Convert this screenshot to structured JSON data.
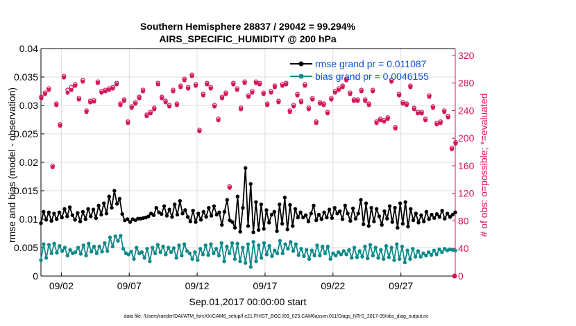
{
  "chart_data": {
    "type": "line",
    "title": "Southern Hemisphere 28837 / 29042 = 99.294%",
    "subtitle": "AIRS_SPECIFIC_HUMIDITY @ 200 hPa",
    "xlabel": "Sep.01,2017 00:00:00 start",
    "ylabel_left": "rmse and bias (model - observation)",
    "ylabel_right": "# of obs: o=possible; *=evaluated",
    "footnote": "data file: /Users/raeder/DAI/ATM_forcXX/CAM6_setup/f.e21.FHIST_BGC.f09_025.CAM6assim.011/Diags_NTrS_2017-09/obs_diag_output.nc",
    "x_range_days": [
      0.5,
      31
    ],
    "x_ticks": [
      "09/02",
      "09/07",
      "09/12",
      "09/17",
      "09/22",
      "09/27"
    ],
    "x_tick_days": [
      2,
      7,
      12,
      17,
      22,
      27
    ],
    "ylim_left": [
      0,
      0.04
    ],
    "y_ticks_left": [
      "0",
      "0.005",
      "0.01",
      "0.015",
      "0.02",
      "0.025",
      "0.03",
      "0.035",
      "0.04"
    ],
    "ylim_right": [
      0,
      330
    ],
    "y_ticks_right": [
      "0",
      "40",
      "80",
      "120",
      "160",
      "200",
      "240",
      "280",
      "320"
    ],
    "grid": true,
    "legend_position": "top-right",
    "legend": [
      "rmse grand pr = 0.011087",
      "bias grand pr = 0.0046155"
    ],
    "colors": {
      "rmse": "#000000",
      "bias": "#0f8a8a",
      "obs": "#d4145a",
      "legend_text": "#0a4fd6",
      "grid": "#dcdcdc"
    },
    "series": [
      {
        "name": "rmse",
        "axis": "left",
        "values": [
          0.0093,
          0.0113,
          0.0099,
          0.0112,
          0.0097,
          0.011,
          0.01,
          0.0112,
          0.0103,
          0.0118,
          0.0105,
          0.0121,
          0.0107,
          0.0099,
          0.0111,
          0.0096,
          0.0113,
          0.01,
          0.0118,
          0.0105,
          0.0117,
          0.0102,
          0.0124,
          0.0108,
          0.0128,
          0.011,
          0.014,
          0.012,
          0.015,
          0.0127,
          0.0136,
          0.0109,
          0.0098,
          0.01,
          0.0095,
          0.01,
          0.0098,
          0.0101,
          0.0101,
          0.0102,
          0.0103,
          0.0105,
          0.011,
          0.0107,
          0.012,
          0.0112,
          0.0109,
          0.0123,
          0.0106,
          0.0117,
          0.0104,
          0.0126,
          0.0108,
          0.0132,
          0.011,
          0.0116,
          0.0104,
          0.0096,
          0.0115,
          0.0095,
          0.011,
          0.0099,
          0.0113,
          0.0104,
          0.012,
          0.0106,
          0.0123,
          0.0108,
          0.0112,
          0.009,
          0.0113,
          0.0134,
          0.0098,
          0.0095,
          0.0085,
          0.014,
          0.0078,
          0.012,
          0.019,
          0.0088,
          0.0162,
          0.0077,
          0.013,
          0.0081,
          0.0126,
          0.0083,
          0.0116,
          0.0094,
          0.0108,
          0.0113,
          0.0079,
          0.0126,
          0.0092,
          0.0138,
          0.0082,
          0.0125,
          0.0088,
          0.0118,
          0.0103,
          0.0112,
          0.0103,
          0.0107,
          0.0096,
          0.011,
          0.0124,
          0.0098,
          0.0108,
          0.01,
          0.0112,
          0.0103,
          0.0117,
          0.0102,
          0.012,
          0.011,
          0.0114,
          0.01,
          0.0124,
          0.011,
          0.0097,
          0.0119,
          0.0101,
          0.011,
          0.0134,
          0.0091,
          0.0128,
          0.0088,
          0.012,
          0.0096,
          0.0118,
          0.0105,
          0.009,
          0.0114,
          0.0101,
          0.0123,
          0.0095,
          0.012,
          0.0085,
          0.0128,
          0.0092,
          0.013,
          0.0087,
          0.0118,
          0.0098,
          0.011,
          0.0094,
          0.0107,
          0.0096,
          0.0113,
          0.01,
          0.0108,
          0.0102,
          0.0109,
          0.0104,
          0.0115,
          0.0101,
          0.011,
          0.0104,
          0.0108,
          0.0112
        ]
      },
      {
        "name": "bias",
        "axis": "left",
        "values": [
          0.0028,
          0.0056,
          0.0032,
          0.0055,
          0.004,
          0.0057,
          0.0041,
          0.0053,
          0.0044,
          0.005,
          0.0036,
          0.0046,
          0.004,
          0.0042,
          0.005,
          0.0039,
          0.0054,
          0.0036,
          0.0057,
          0.0043,
          0.0052,
          0.004,
          0.0052,
          0.0043,
          0.0058,
          0.0044,
          0.0068,
          0.0052,
          0.007,
          0.0062,
          0.0071,
          0.0048,
          0.004,
          0.0038,
          0.0043,
          0.003,
          0.005,
          0.004,
          0.0042,
          0.0032,
          0.0048,
          0.0026,
          0.005,
          0.004,
          0.0055,
          0.0042,
          0.0052,
          0.0038,
          0.005,
          0.0042,
          0.0049,
          0.0032,
          0.0054,
          0.0036,
          0.0056,
          0.0044,
          0.004,
          0.003,
          0.0042,
          0.0028,
          0.0048,
          0.0038,
          0.0054,
          0.0037,
          0.0056,
          0.004,
          0.0048,
          0.0036,
          0.0058,
          0.0026,
          0.0052,
          0.004,
          0.0058,
          0.003,
          0.0057,
          0.0026,
          0.005,
          0.0023,
          0.0056,
          0.0016,
          0.006,
          0.0026,
          0.0054,
          0.0032,
          0.0058,
          0.0038,
          0.0053,
          0.0035,
          0.0045,
          0.004,
          0.0062,
          0.004,
          0.0056,
          0.0048,
          0.006,
          0.0044,
          0.0056,
          0.0037,
          0.0048,
          0.0035,
          0.0046,
          0.003,
          0.0045,
          0.0036,
          0.0054,
          0.0036,
          0.0052,
          0.004,
          0.0052,
          0.003,
          0.004,
          0.0036,
          0.0042,
          0.0038,
          0.0044,
          0.0038,
          0.0046,
          0.0032,
          0.005,
          0.0033,
          0.0044,
          0.0034,
          0.0052,
          0.0031,
          0.0055,
          0.0036,
          0.005,
          0.0032,
          0.0046,
          0.003,
          0.0053,
          0.0033,
          0.005,
          0.0028,
          0.0056,
          0.003,
          0.0052,
          0.0024,
          0.0045,
          0.003,
          0.0048,
          0.0034,
          0.0044,
          0.0034,
          0.004,
          0.0036,
          0.0042,
          0.0037,
          0.0045,
          0.0038,
          0.0047,
          0.0042,
          0.0048,
          0.0045,
          0.0047,
          0.0046,
          0.0045
        ]
      },
      {
        "name": "obs_possible",
        "axis": "right",
        "values": [
          260,
          266,
          272,
          160,
          250,
          220,
          290,
          270,
          274,
          278,
          258,
          284,
          240,
          254,
          255,
          282,
          268,
          270,
          272,
          274,
          280,
          250,
          256,
          224,
          246,
          252,
          260,
          270,
          234,
          238,
          244,
          280,
          260,
          254,
          248,
          270,
          250,
          276,
          286,
          274,
          292,
          278,
          212,
          264,
          280,
          274,
          248,
          228,
          260,
          266,
          130,
          280,
          272,
          244,
          282,
          262,
          268,
          282,
          280,
          266,
          250,
          268,
          276,
          254,
          278,
          280,
          240,
          248,
          264,
          254,
          278,
          244,
          258,
          224,
          252,
          250,
          238,
          258,
          268,
          272,
          276,
          286,
          266,
          256,
          256,
          270,
          256,
          250,
          270,
          224,
          228,
          226,
          230,
          284,
          216,
          264,
          252,
          250,
          276,
          244,
          238,
          238,
          228,
          262,
          246,
          222,
          224,
          240,
          232,
          186,
          194
        ]
      },
      {
        "name": "obs_evaluated",
        "axis": "right",
        "values": [
          258,
          264,
          270,
          158,
          248,
          218,
          288,
          266,
          270,
          276,
          256,
          282,
          238,
          252,
          253,
          280,
          266,
          268,
          270,
          272,
          278,
          248,
          254,
          222,
          244,
          250,
          258,
          268,
          232,
          236,
          242,
          278,
          258,
          252,
          246,
          268,
          248,
          274,
          284,
          272,
          290,
          276,
          210,
          262,
          278,
          272,
          246,
          226,
          258,
          264,
          128,
          278,
          270,
          242,
          280,
          260,
          266,
          280,
          278,
          264,
          248,
          266,
          274,
          252,
          276,
          278,
          238,
          246,
          262,
          252,
          276,
          242,
          256,
          222,
          250,
          248,
          236,
          256,
          266,
          270,
          274,
          284,
          264,
          254,
          254,
          268,
          254,
          248,
          268,
          222,
          226,
          224,
          228,
          282,
          214,
          262,
          250,
          248,
          274,
          242,
          236,
          236,
          226,
          260,
          244,
          220,
          222,
          238,
          230,
          184,
          192
        ]
      }
    ],
    "obs_final_point": {
      "day": 30.95,
      "value": 0
    }
  }
}
